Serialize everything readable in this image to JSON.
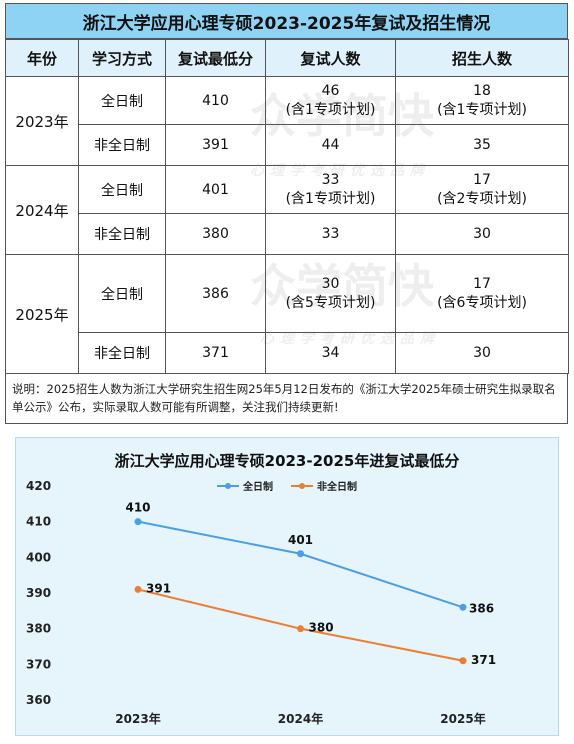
{
  "title": "浙江大学应用心理专硕2023-2025年复试及招生情况",
  "headers": [
    "年份",
    "学习方式",
    "复试最低分",
    "复试人数",
    "招生人数"
  ],
  "rows": [
    {
      "year": "2023年",
      "mode": "全日制",
      "score": "410",
      "retest": "46",
      "retest_note": "(含1专项计划)",
      "admit": "18",
      "admit_note": "(含1专项计划)"
    },
    {
      "year": "",
      "mode": "非全日制",
      "score": "391",
      "retest": "44",
      "retest_note": "",
      "admit": "35",
      "admit_note": ""
    },
    {
      "year": "2024年",
      "mode": "全日制",
      "score": "401",
      "retest": "33",
      "retest_note": "(含1专项计划)",
      "admit": "17",
      "admit_note": "(含2专项计划)"
    },
    {
      "year": "",
      "mode": "非全日制",
      "score": "380",
      "retest": "33",
      "retest_note": "",
      "admit": "30",
      "admit_note": ""
    },
    {
      "year": "2025年",
      "mode": "全日制",
      "score": "386",
      "retest": "30",
      "retest_note": "(含5专项计划)",
      "admit": "17",
      "admit_note": "(含6专项计划)"
    },
    {
      "year": "",
      "mode": "非全日制",
      "score": "371",
      "retest": "34",
      "retest_note": "",
      "admit": "30",
      "admit_note": ""
    }
  ],
  "note": "说明：2025招生人数为浙江大学研究生招生网25年5月12日发布的《浙江大学2025年硕士研究生拟录取名单公示》公布，实际录取人数可能有所调整，关注我们持续更新!",
  "watermark": {
    "brand": "众学简快",
    "slogan": "心理学考研优选品牌"
  },
  "chart_data": {
    "type": "line",
    "title": "浙江大学应用心理专硕2023-2025年进复试最低分",
    "categories": [
      "2023年",
      "2024年",
      "2025年"
    ],
    "series": [
      {
        "name": "全日制",
        "values": [
          410,
          401,
          386
        ],
        "color": "#4a9fe6"
      },
      {
        "name": "非全日制",
        "values": [
          391,
          380,
          371
        ],
        "color": "#ed7d31"
      }
    ],
    "ylim": [
      360,
      420
    ],
    "yticks": [
      360,
      370,
      380,
      390,
      400,
      410,
      420
    ],
    "legend_position": "top-center",
    "grid": false
  }
}
